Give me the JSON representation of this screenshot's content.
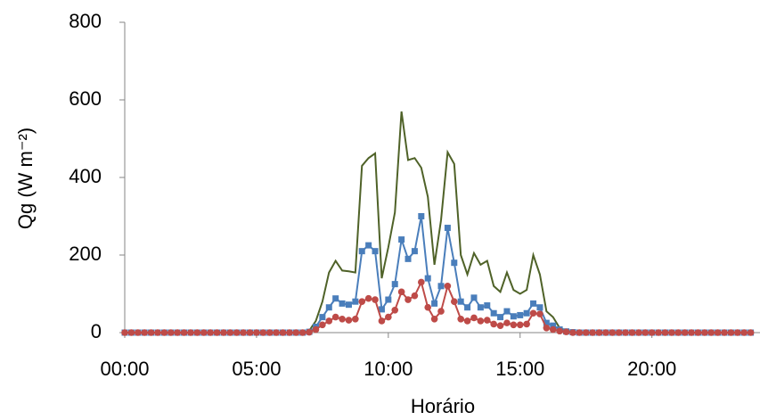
{
  "chart_data": {
    "type": "line",
    "x_label": "Horário",
    "y_label": "Qg (W m⁻²)",
    "x": [
      0,
      0.25,
      0.5,
      0.75,
      1,
      1.25,
      1.5,
      1.75,
      2,
      2.25,
      2.5,
      2.75,
      3,
      3.25,
      3.5,
      3.75,
      4,
      4.25,
      4.5,
      4.75,
      5,
      5.25,
      5.5,
      5.75,
      6,
      6.25,
      6.5,
      6.75,
      7,
      7.25,
      7.5,
      7.75,
      8,
      8.25,
      8.5,
      8.75,
      9,
      9.25,
      9.5,
      9.75,
      10,
      10.25,
      10.5,
      10.75,
      11,
      11.25,
      11.5,
      11.75,
      12,
      12.25,
      12.5,
      12.75,
      13,
      13.25,
      13.5,
      13.75,
      14,
      14.25,
      14.5,
      14.75,
      15,
      15.25,
      15.5,
      15.75,
      16,
      16.25,
      16.5,
      16.75,
      17,
      17.25,
      17.5,
      17.75,
      18,
      18.25,
      18.5,
      18.75,
      19,
      19.25,
      19.5,
      19.75,
      20,
      20.25,
      20.5,
      20.75,
      21,
      21.25,
      21.5,
      21.75,
      22,
      22.25,
      22.5,
      22.75,
      23,
      23.25,
      23.5,
      23.75
    ],
    "series": [
      {
        "color": "#4f6228",
        "marker": "none",
        "values": [
          0,
          0,
          0,
          0,
          0,
          0,
          0,
          0,
          0,
          0,
          0,
          0,
          0,
          0,
          0,
          0,
          0,
          0,
          0,
          0,
          0,
          0,
          0,
          0,
          0,
          0,
          0,
          0,
          5,
          30,
          80,
          155,
          185,
          160,
          158,
          155,
          430,
          450,
          462,
          140,
          220,
          310,
          570,
          445,
          450,
          425,
          350,
          175,
          290,
          465,
          435,
          200,
          150,
          205,
          175,
          185,
          120,
          105,
          155,
          110,
          100,
          110,
          200,
          150,
          55,
          40,
          12,
          5,
          2,
          0,
          0,
          0,
          0,
          0,
          0,
          0,
          0,
          0,
          0,
          0,
          0,
          0,
          0,
          0,
          0,
          0,
          0,
          0,
          0,
          0,
          0,
          0,
          0,
          0,
          0,
          0
        ]
      },
      {
        "color": "#4a7ebb",
        "marker": "square",
        "values": [
          0,
          0,
          0,
          0,
          0,
          0,
          0,
          0,
          0,
          0,
          0,
          0,
          0,
          0,
          0,
          0,
          0,
          0,
          0,
          0,
          0,
          0,
          0,
          0,
          0,
          0,
          0,
          0,
          2,
          15,
          40,
          65,
          88,
          75,
          72,
          80,
          210,
          225,
          210,
          60,
          85,
          125,
          240,
          190,
          210,
          300,
          140,
          75,
          120,
          270,
          180,
          80,
          65,
          90,
          65,
          70,
          50,
          40,
          55,
          42,
          45,
          50,
          75,
          65,
          25,
          18,
          8,
          3,
          1,
          0,
          0,
          0,
          0,
          0,
          0,
          0,
          0,
          0,
          0,
          0,
          0,
          0,
          0,
          0,
          0,
          0,
          0,
          0,
          0,
          0,
          0,
          0,
          0,
          0,
          0,
          0
        ]
      },
      {
        "color": "#be4b48",
        "marker": "circle",
        "values": [
          0,
          0,
          0,
          0,
          0,
          0,
          0,
          0,
          0,
          0,
          0,
          0,
          0,
          0,
          0,
          0,
          0,
          0,
          0,
          0,
          0,
          0,
          0,
          0,
          0,
          0,
          0,
          0,
          1,
          8,
          20,
          30,
          40,
          35,
          32,
          35,
          80,
          88,
          85,
          30,
          40,
          58,
          105,
          85,
          95,
          130,
          65,
          35,
          55,
          120,
          80,
          35,
          30,
          38,
          30,
          32,
          22,
          18,
          25,
          20,
          20,
          22,
          50,
          48,
          12,
          8,
          4,
          2,
          0,
          0,
          0,
          0,
          0,
          0,
          0,
          0,
          0,
          0,
          0,
          0,
          0,
          0,
          0,
          0,
          0,
          0,
          0,
          0,
          0,
          0,
          0,
          0,
          0,
          0,
          0,
          0
        ]
      }
    ],
    "xlim": [
      0,
      24
    ],
    "xticks": [
      {
        "value": 0,
        "label": "00:00"
      },
      {
        "value": 5,
        "label": "05:00"
      },
      {
        "value": 10,
        "label": "10:00"
      },
      {
        "value": 15,
        "label": "15:00"
      },
      {
        "value": 20,
        "label": "20:00"
      }
    ],
    "ylim": [
      0,
      800
    ],
    "yticks": [
      0,
      200,
      400,
      600,
      800
    ],
    "grid": false
  }
}
